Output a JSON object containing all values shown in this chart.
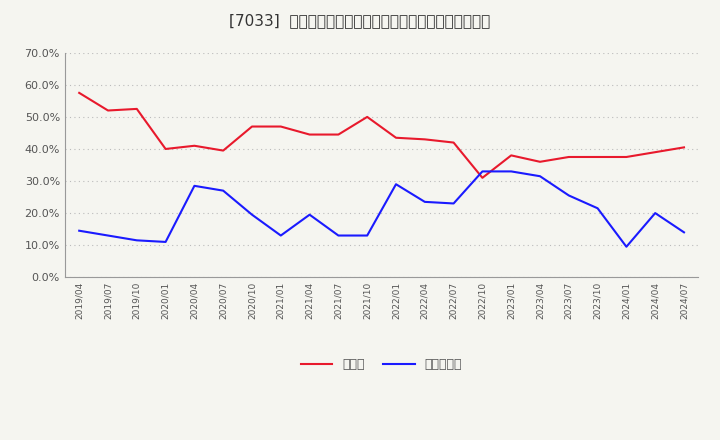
{
  "title": "[7033]  現預金、有利子負債の総資産に対する比率の推移",
  "x_labels": [
    "2019/04",
    "2019/07",
    "2019/10",
    "2020/01",
    "2020/04",
    "2020/07",
    "2020/10",
    "2021/01",
    "2021/04",
    "2021/07",
    "2021/10",
    "2022/01",
    "2022/04",
    "2022/07",
    "2022/10",
    "2023/01",
    "2023/04",
    "2023/07",
    "2023/10",
    "2024/01",
    "2024/04",
    "2024/07"
  ],
  "cash_ratio": [
    0.575,
    0.52,
    0.525,
    0.4,
    0.41,
    0.395,
    0.47,
    0.47,
    0.445,
    0.445,
    0.5,
    0.435,
    0.43,
    0.42,
    0.31,
    0.38,
    0.36,
    0.375,
    0.375,
    0.375,
    0.39,
    0.405
  ],
  "debt_ratio": [
    0.145,
    0.13,
    0.115,
    0.11,
    0.285,
    0.27,
    0.195,
    0.13,
    0.195,
    0.13,
    0.13,
    0.29,
    0.235,
    0.23,
    0.33,
    0.33,
    0.315,
    0.255,
    0.215,
    0.095,
    0.2,
    0.14
  ],
  "cash_color": "#e8192c",
  "debt_color": "#1a1aff",
  "background_color": "#f5f5f0",
  "plot_bg_color": "#f5f5f0",
  "grid_color": "#bbbbbb",
  "ylim": [
    0.0,
    0.7
  ],
  "yticks": [
    0.0,
    0.1,
    0.2,
    0.3,
    0.4,
    0.5,
    0.6,
    0.7
  ],
  "legend_cash": "現預金",
  "legend_debt": "有利子負債",
  "title_fontsize": 11
}
